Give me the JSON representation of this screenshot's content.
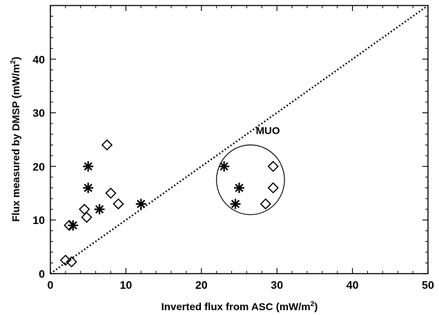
{
  "chart_data": {
    "type": "scatter",
    "xlabel": "Inverted flux from ASC (mW/m",
    "xlabel_sup": "2",
    "xlabel_end": ")",
    "ylabel": "Flux measured by DMSP (mW/m",
    "ylabel_sup": "2",
    "ylabel_end": ")",
    "xlim": [
      0,
      50
    ],
    "ylim": [
      0,
      50
    ],
    "xticks": [
      0,
      10,
      20,
      30,
      40,
      50
    ],
    "yticks": [
      0,
      10,
      20,
      30,
      40
    ],
    "xtick_labels": [
      "0",
      "10",
      "20",
      "30",
      "40",
      "50"
    ],
    "ytick_labels": [
      "0",
      "10",
      "20",
      "30",
      "40"
    ],
    "grid": false,
    "reference_line": {
      "style": "dotted",
      "from": [
        0,
        0
      ],
      "to": [
        50,
        50
      ]
    },
    "series": [
      {
        "marker": "diamond",
        "points": [
          {
            "x": 2.0,
            "y": 2.5
          },
          {
            "x": 2.8,
            "y": 2.2
          },
          {
            "x": 2.5,
            "y": 9.0
          },
          {
            "x": 4.5,
            "y": 12.0
          },
          {
            "x": 4.8,
            "y": 10.5
          },
          {
            "x": 7.5,
            "y": 24.0
          },
          {
            "x": 8.0,
            "y": 15.0
          },
          {
            "x": 9.0,
            "y": 13.0
          },
          {
            "x": 28.5,
            "y": 13.0
          },
          {
            "x": 29.5,
            "y": 20.0
          },
          {
            "x": 29.5,
            "y": 16.0
          }
        ]
      },
      {
        "marker": "asterisk",
        "points": [
          {
            "x": 3.0,
            "y": 9.0
          },
          {
            "x": 5.0,
            "y": 20.0
          },
          {
            "x": 5.0,
            "y": 16.0
          },
          {
            "x": 6.5,
            "y": 12.0
          },
          {
            "x": 12.0,
            "y": 13.0
          },
          {
            "x": 23.0,
            "y": 20.0
          },
          {
            "x": 25.0,
            "y": 16.0
          },
          {
            "x": 24.5,
            "y": 13.0
          }
        ]
      }
    ],
    "annotations": [
      {
        "text": "MUO",
        "x": 27.2,
        "y": 26.0
      }
    ],
    "ellipse": {
      "cx": 26.5,
      "cy": 17.5,
      "rx": 4.5,
      "ry": 6.5
    }
  }
}
